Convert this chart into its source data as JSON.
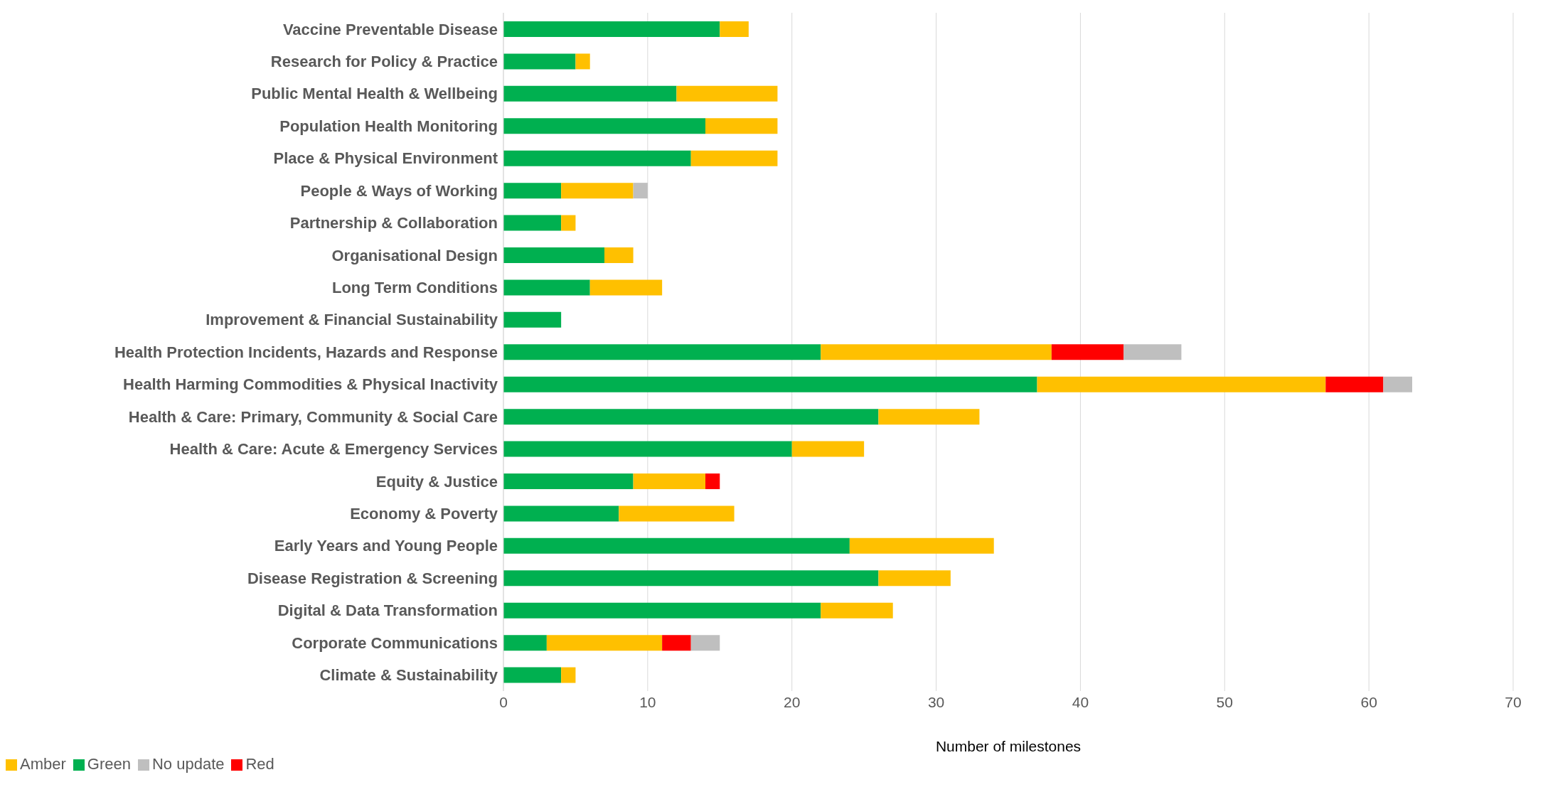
{
  "chart_data": {
    "type": "bar",
    "orientation": "horizontal",
    "stacked": true,
    "xlabel": "Number of milestones",
    "categories": [
      "Vaccine Preventable Disease",
      "Research for Policy & Practice",
      "Public Mental Health & Wellbeing",
      "Population Health Monitoring",
      "Place & Physical Environment",
      "People & Ways of Working",
      "Partnership & Collaboration",
      "Organisational Design",
      "Long Term Conditions",
      "Improvement & Financial Sustainability",
      "Health Protection Incidents, Hazards and Response",
      "Health Harming Commodities & Physical Inactivity",
      "Health & Care: Primary, Community & Social Care",
      "Health & Care: Acute & Emergency Services",
      "Equity & Justice",
      "Economy & Poverty",
      "Early Years and Young People",
      "Disease Registration & Screening",
      "Digital & Data Transformation",
      "Corporate Communications",
      "Climate & Sustainability"
    ],
    "series": [
      {
        "name": "Green",
        "color": "#00b050",
        "values": [
          15,
          5,
          12,
          14,
          13,
          4,
          4,
          7,
          6,
          4,
          22,
          37,
          26,
          20,
          9,
          8,
          24,
          26,
          22,
          3,
          4
        ]
      },
      {
        "name": "Amber",
        "color": "#ffc000",
        "values": [
          2,
          1,
          7,
          5,
          6,
          5,
          1,
          2,
          5,
          null,
          16,
          20,
          7,
          5,
          5,
          8,
          10,
          5,
          5,
          8,
          1
        ]
      },
      {
        "name": "Red",
        "color": "#ff0000",
        "values": [
          null,
          null,
          null,
          null,
          null,
          null,
          null,
          null,
          null,
          null,
          5,
          4,
          null,
          null,
          1,
          null,
          null,
          null,
          null,
          2,
          null
        ]
      },
      {
        "name": "No update",
        "color": "#bfbfbf",
        "values": [
          null,
          null,
          null,
          null,
          null,
          1,
          null,
          null,
          null,
          null,
          4,
          2,
          null,
          null,
          null,
          null,
          null,
          null,
          null,
          2,
          null
        ]
      }
    ],
    "xlim": [
      0,
      70
    ],
    "xticks": [
      0,
      10,
      20,
      30,
      40,
      50,
      60,
      70
    ],
    "grid": "x",
    "legend": "bottom left"
  }
}
